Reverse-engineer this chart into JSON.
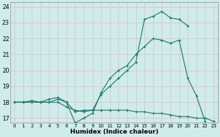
{
  "xlabel": "Humidex (Indice chaleur)",
  "ylabel": "",
  "xlim": [
    -0.5,
    23.5
  ],
  "ylim": [
    16.7,
    24.3
  ],
  "yticks": [
    17,
    18,
    19,
    20,
    21,
    22,
    23,
    24
  ],
  "xticks": [
    0,
    1,
    2,
    3,
    4,
    5,
    6,
    7,
    8,
    9,
    10,
    11,
    12,
    13,
    14,
    15,
    16,
    17,
    18,
    19,
    20,
    21,
    22,
    23
  ],
  "bg_color": "#ceecea",
  "grid_color": "#e8b8b8",
  "line_color": "#1a7a6e",
  "series": [
    {
      "x": [
        0,
        1,
        2,
        3,
        4,
        5,
        6,
        7,
        8,
        9,
        10,
        11,
        12,
        13,
        14,
        15,
        16,
        17,
        18,
        19,
        20,
        21,
        22,
        23
      ],
      "y": [
        18.0,
        18.0,
        18.0,
        18.0,
        18.0,
        18.0,
        17.7,
        17.5,
        17.4,
        17.5,
        17.5,
        17.5,
        17.5,
        17.5,
        17.4,
        17.4,
        17.3,
        17.3,
        17.2,
        17.1,
        17.1,
        17.0,
        17.0,
        16.8
      ]
    },
    {
      "x": [
        0,
        1,
        2,
        3,
        4,
        5,
        6,
        7,
        8,
        9,
        10,
        11,
        12,
        13,
        14,
        15,
        16,
        17,
        18,
        19,
        20,
        21,
        22,
        23
      ],
      "y": [
        18.0,
        18.0,
        18.1,
        18.0,
        18.2,
        18.3,
        18.0,
        17.4,
        17.5,
        17.5,
        18.5,
        19.0,
        19.5,
        20.0,
        20.5,
        23.2,
        23.4,
        23.7,
        23.3,
        23.2,
        22.8,
        null,
        null,
        null
      ]
    },
    {
      "x": [
        0,
        1,
        2,
        3,
        4,
        5,
        6,
        7,
        8,
        9,
        10,
        11,
        12,
        13,
        14,
        15,
        16,
        17,
        18,
        19,
        20,
        21,
        22,
        23
      ],
      "y": [
        18.0,
        18.0,
        18.0,
        18.0,
        18.0,
        18.2,
        18.0,
        16.7,
        17.0,
        17.3,
        18.6,
        19.5,
        20.0,
        20.3,
        21.0,
        21.5,
        22.0,
        21.9,
        21.7,
        21.9,
        19.5,
        18.4,
        16.8,
        null
      ]
    }
  ]
}
